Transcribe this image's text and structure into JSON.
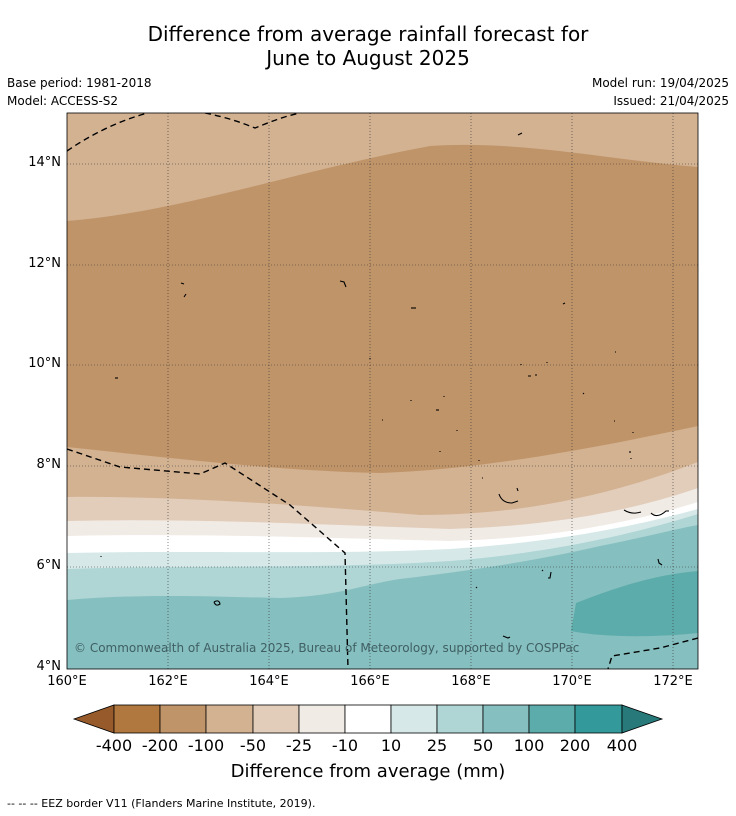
{
  "title_line1": "Difference from average rainfall forecast for",
  "title_line2": "June to August 2025",
  "base_period": "Base period: 1981-2018",
  "model": "Model: ACCESS-S2",
  "model_run": "Model run: 19/04/2025",
  "issued": "Issued: 21/04/2025",
  "copyright": "© Commonwealth of Australia 2025, Bureau of Meteorology, supported by COSPPac",
  "footnote": "--  --  -- EEZ border V11 (Flanders Marine Institute, 2019).",
  "lat_labels": [
    "14°N",
    "12°N",
    "10°N",
    "8°N",
    "6°N",
    "4°N"
  ],
  "lon_labels": [
    "160°E",
    "162°E",
    "164°E",
    "166°E",
    "168°E",
    "170°E",
    "172°E"
  ],
  "colorbar": {
    "title": "Difference from average (mm)",
    "labels": [
      "-400",
      "-200",
      "-100",
      "-50",
      "-25",
      "-10",
      "10",
      "25",
      "50",
      "100",
      "200",
      "400"
    ],
    "colors": [
      "#975a2b",
      "#b0773f",
      "#c09469",
      "#d3b292",
      "#e2cdbb",
      "#f1ebe5",
      "#ffffff",
      "#d6e9e8",
      "#afd5d5",
      "#86bfbf",
      "#5dacac",
      "#34999a",
      "#27797a"
    ]
  }
}
